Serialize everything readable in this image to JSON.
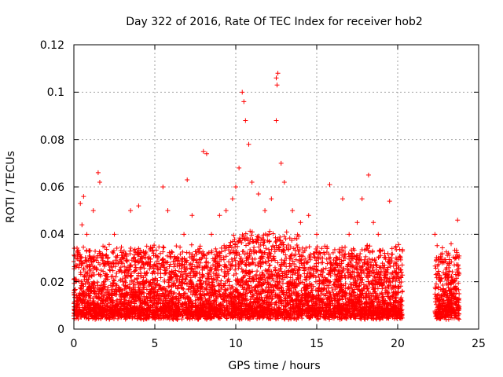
{
  "chart_data": {
    "type": "scatter",
    "title": "Day 322 of 2016, Rate Of TEC Index for receiver hob2",
    "xlabel": "GPS time / hours",
    "ylabel": "ROTI / TECUs",
    "xlim": [
      0,
      25
    ],
    "ylim": [
      0,
      0.12
    ],
    "x_ticks": [
      "0",
      "5",
      "10",
      "15",
      "20",
      "25"
    ],
    "y_ticks": [
      "0",
      "0.02",
      "0.04",
      "0.06",
      "0.08",
      "0.1",
      "0.12"
    ],
    "grid": true,
    "marker": "+",
    "colors": {
      "series": "#ff0000",
      "grid": "#a0a0a0",
      "axis": "#000000"
    },
    "series": [
      {
        "points": [
          [
            0.2,
            0.012
          ],
          [
            0.3,
            0.026
          ],
          [
            0.4,
            0.053
          ],
          [
            0.5,
            0.044
          ],
          [
            0.6,
            0.056
          ],
          [
            0.8,
            0.04
          ],
          [
            1.0,
            0.03
          ],
          [
            1.2,
            0.05
          ],
          [
            1.5,
            0.066
          ],
          [
            1.6,
            0.062
          ],
          [
            1.8,
            0.035
          ],
          [
            2.2,
            0.025
          ],
          [
            2.5,
            0.04
          ],
          [
            3.0,
            0.03
          ],
          [
            3.5,
            0.05
          ],
          [
            4.0,
            0.052
          ],
          [
            4.5,
            0.035
          ],
          [
            4.8,
            0.018
          ],
          [
            5.2,
            0.025
          ],
          [
            5.5,
            0.06
          ],
          [
            5.8,
            0.05
          ],
          [
            6.2,
            0.03
          ],
          [
            6.8,
            0.04
          ],
          [
            7.0,
            0.063
          ],
          [
            7.3,
            0.048
          ],
          [
            7.8,
            0.035
          ],
          [
            8.0,
            0.075
          ],
          [
            8.2,
            0.074
          ],
          [
            8.5,
            0.04
          ],
          [
            9.0,
            0.048
          ],
          [
            9.4,
            0.05
          ],
          [
            9.8,
            0.055
          ],
          [
            10.0,
            0.06
          ],
          [
            10.2,
            0.068
          ],
          [
            10.4,
            0.1
          ],
          [
            10.5,
            0.096
          ],
          [
            10.6,
            0.088
          ],
          [
            10.8,
            0.078
          ],
          [
            11.0,
            0.062
          ],
          [
            11.4,
            0.057
          ],
          [
            11.8,
            0.05
          ],
          [
            12.2,
            0.055
          ],
          [
            12.5,
            0.106
          ],
          [
            12.6,
            0.108
          ],
          [
            12.55,
            0.103
          ],
          [
            12.5,
            0.088
          ],
          [
            12.8,
            0.07
          ],
          [
            13.0,
            0.062
          ],
          [
            13.5,
            0.05
          ],
          [
            14.0,
            0.045
          ],
          [
            14.5,
            0.048
          ],
          [
            15.0,
            0.04
          ],
          [
            15.5,
            0.035
          ],
          [
            15.8,
            0.061
          ],
          [
            16.2,
            0.03
          ],
          [
            16.6,
            0.055
          ],
          [
            17.0,
            0.04
          ],
          [
            17.5,
            0.045
          ],
          [
            17.8,
            0.055
          ],
          [
            18.2,
            0.065
          ],
          [
            18.5,
            0.045
          ],
          [
            18.8,
            0.04
          ],
          [
            19.2,
            0.032
          ],
          [
            19.5,
            0.054
          ],
          [
            19.9,
            0.03
          ],
          [
            20.2,
            0.025
          ],
          [
            22.3,
            0.04
          ],
          [
            22.5,
            0.03
          ],
          [
            23.0,
            0.022
          ],
          [
            23.3,
            0.036
          ],
          [
            23.6,
            0.03
          ],
          [
            23.7,
            0.046
          ]
        ]
      }
    ]
  }
}
